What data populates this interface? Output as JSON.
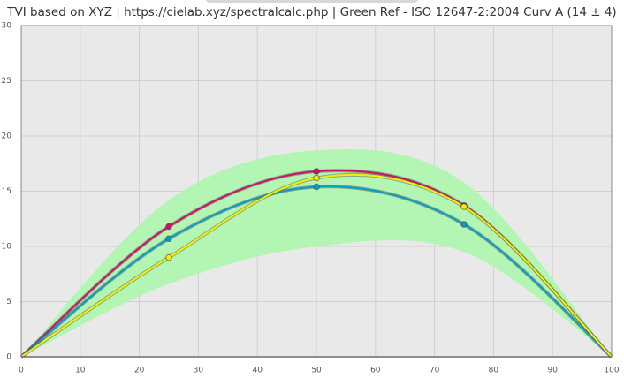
{
  "chart_data": {
    "type": "line",
    "title": "TVI based on XYZ  |  https://cielab.xyz/spectralcalc.php  |  Green Ref - ISO 12647-2:2004 Curv A (14 ± 4)",
    "x": [
      0,
      25,
      50,
      75,
      100
    ],
    "xlim": [
      0,
      100
    ],
    "xticks": [
      0,
      10,
      20,
      30,
      40,
      50,
      60,
      70,
      80,
      90,
      100
    ],
    "ylim": [
      0,
      30
    ],
    "yticks": [
      0,
      5,
      10,
      15,
      20,
      25,
      30
    ],
    "grid": true,
    "band": {
      "color": "#b3f5b3",
      "upper": [
        0,
        14.2,
        18.7,
        15.8,
        0
      ],
      "lower": [
        0,
        6.6,
        10.0,
        9.5,
        0
      ]
    },
    "series": [
      {
        "color": "#d0106a",
        "values": [
          0,
          11.8,
          16.8,
          13.7,
          0
        ]
      },
      {
        "color": "#0a9cc8",
        "values": [
          0,
          10.7,
          15.4,
          12.0,
          0
        ]
      },
      {
        "color": "#f2f000",
        "values": [
          0,
          9.0,
          16.2,
          13.6,
          0
        ]
      }
    ]
  }
}
